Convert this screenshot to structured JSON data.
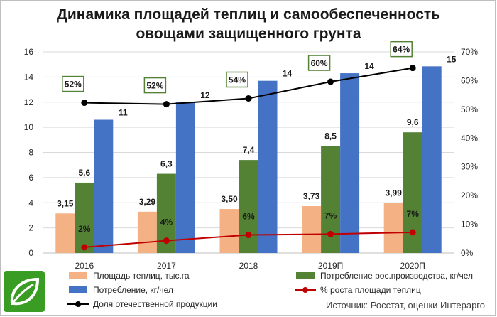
{
  "title_line1": "Динамика площадей теплиц и самообеспеченность",
  "title_line2": "овощами защищенного грунта",
  "source": "Источник: Росстат, оценки Интерарго",
  "logo_icon": "leaf-icon",
  "colors": {
    "area": "#f4b183",
    "domestic_consumption": "#548235",
    "consumption": "#4472c4",
    "growth": "#c00000",
    "self_sufficiency": "#000000",
    "label_box": "#548235",
    "logo": "#3a9d23"
  },
  "chart_data": {
    "type": "bar",
    "categories": [
      "2016",
      "2017",
      "2018",
      "2019П",
      "2020П"
    ],
    "y_left": {
      "min": 0,
      "max": 16,
      "step": 2,
      "ticks": [
        "0",
        "2",
        "4",
        "6",
        "8",
        "10",
        "12",
        "14",
        "16"
      ]
    },
    "y_right": {
      "min": 0,
      "max": 70,
      "step": 10,
      "ticks": [
        "0%",
        "10%",
        "20%",
        "30%",
        "40%",
        "50%",
        "60%",
        "70%"
      ]
    },
    "grid": true,
    "legend_position": "bottom",
    "series": [
      {
        "name": "Площадь теплиц, тыс.га",
        "kind": "bar",
        "axis": "left",
        "color_key": "area",
        "values": [
          3.15,
          3.29,
          3.5,
          3.73,
          3.99
        ],
        "labels": [
          "3,15",
          "3,29",
          "3,50",
          "3,73",
          "3,99"
        ]
      },
      {
        "name": "Потребление рос.производства, кг/чел",
        "kind": "bar",
        "axis": "left",
        "color_key": "domestic_consumption",
        "values": [
          5.6,
          6.3,
          7.4,
          8.5,
          9.6
        ],
        "labels": [
          "5,6",
          "6,3",
          "7,4",
          "8,5",
          "9,6"
        ]
      },
      {
        "name": "Потребление, кг/чел",
        "kind": "bar",
        "axis": "left",
        "color_key": "consumption",
        "values": [
          10.6,
          12.0,
          13.7,
          14.3,
          14.85
        ],
        "labels": [
          "11",
          "12",
          "14",
          "14",
          "15"
        ]
      },
      {
        "name": "% роста площади теплиц",
        "kind": "line",
        "axis": "right",
        "color_key": "growth",
        "values": [
          2,
          4.3,
          6.3,
          6.6,
          7.2
        ],
        "labels": [
          "2%",
          "4%",
          "6%",
          "7%",
          "7%"
        ]
      },
      {
        "name": "Доля отечественной продукции",
        "kind": "line",
        "axis": "right",
        "color_key": "self_sufficiency",
        "values": [
          52.3,
          51.8,
          53.8,
          59.6,
          64.4
        ],
        "labels": [
          "52%",
          "52%",
          "54%",
          "60%",
          "64%"
        ],
        "boxed_labels": true
      }
    ]
  }
}
